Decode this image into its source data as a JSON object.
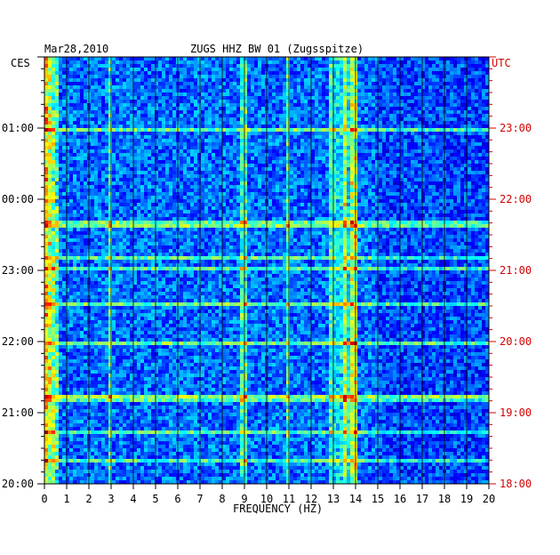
{
  "chart_data": {
    "type": "heatmap",
    "title": "ZUGS HHZ BW 01 (Zugsspitze)",
    "date": "Mar28,2010",
    "xlabel": "FREQUENCY (HZ)",
    "xlim": [
      0,
      20
    ],
    "x_ticks": [
      "0",
      "1",
      "2",
      "3",
      "4",
      "5",
      "6",
      "7",
      "8",
      "9",
      "10",
      "11",
      "12",
      "13",
      "14",
      "15",
      "16",
      "17",
      "18",
      "19",
      "20"
    ],
    "left_axis_label": "CES",
    "right_axis_label": "UTC",
    "left_ticks": [
      "01:00",
      "00:00",
      "23:00",
      "22:00",
      "21:00",
      "20:00"
    ],
    "right_ticks": [
      "23:00",
      "22:00",
      "21:00",
      "20:00",
      "19:00",
      "18:00"
    ],
    "time_span_hours": 6,
    "colormap": "jet",
    "colors": {
      "right_axis": "#d40000",
      "left_axis": "#000000",
      "background": "#0000c8"
    },
    "features": {
      "high_energy_band_hz": [
        0,
        0.7
      ],
      "persistent_lines_hz": [
        3.0,
        9.0,
        11.0,
        12.9,
        13.5,
        13.9
      ],
      "broad_band_hz": [
        13,
        14
      ]
    }
  }
}
